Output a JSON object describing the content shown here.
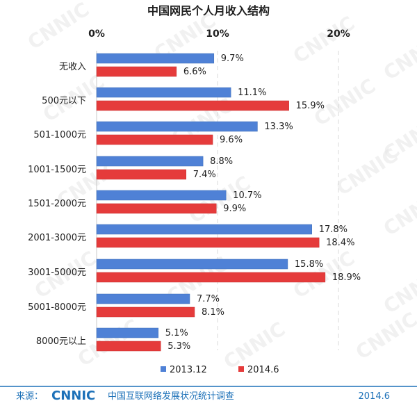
{
  "chart_data": {
    "type": "bar",
    "orientation": "horizontal",
    "title": "中国网民个人月收入结构",
    "categories": [
      "无收入",
      "500元以下",
      "501-1000元",
      "1001-1500元",
      "1501-2000元",
      "2001-3000元",
      "3001-5000元",
      "5001-8000元",
      "8000元以上"
    ],
    "series": [
      {
        "name": "2013.12",
        "values": [
          9.7,
          11.1,
          13.3,
          8.8,
          10.7,
          17.8,
          15.8,
          7.7,
          5.1
        ],
        "labels": [
          "9.7%",
          "11.1%",
          "13.3%",
          "8.8%",
          "10.7%",
          "17.8%",
          "15.8%",
          "7.7%",
          "5.1%"
        ]
      },
      {
        "name": "2014.6",
        "values": [
          6.6,
          15.9,
          9.6,
          7.4,
          9.9,
          18.4,
          18.9,
          8.1,
          5.3
        ],
        "labels": [
          "6.6%",
          "15.9%",
          "9.6%",
          "7.4%",
          "9.9%",
          "18.4%",
          "18.9%",
          "8.1%",
          "5.3%"
        ]
      }
    ],
    "xticks": [
      0,
      10,
      20
    ],
    "xtick_labels": [
      "0%",
      "10%",
      "20%"
    ],
    "xlim": [
      0,
      20
    ],
    "grid": "vertical dashed",
    "legend_position": "bottom-center",
    "colors": {
      "series_1": "#4F81D6",
      "series_2": "#E53B3B",
      "text": "#1f1f1f",
      "grid": "#d8d8d8",
      "axis": "#c8c8c8",
      "footer_blue": "#1d71b8",
      "watermark": "#e7e7e7"
    }
  },
  "footer": {
    "source_label": "来源：",
    "logo_text": "CNNIC",
    "survey_text": "中国互联网络发展状况统计调查",
    "date": "2014.6"
  }
}
